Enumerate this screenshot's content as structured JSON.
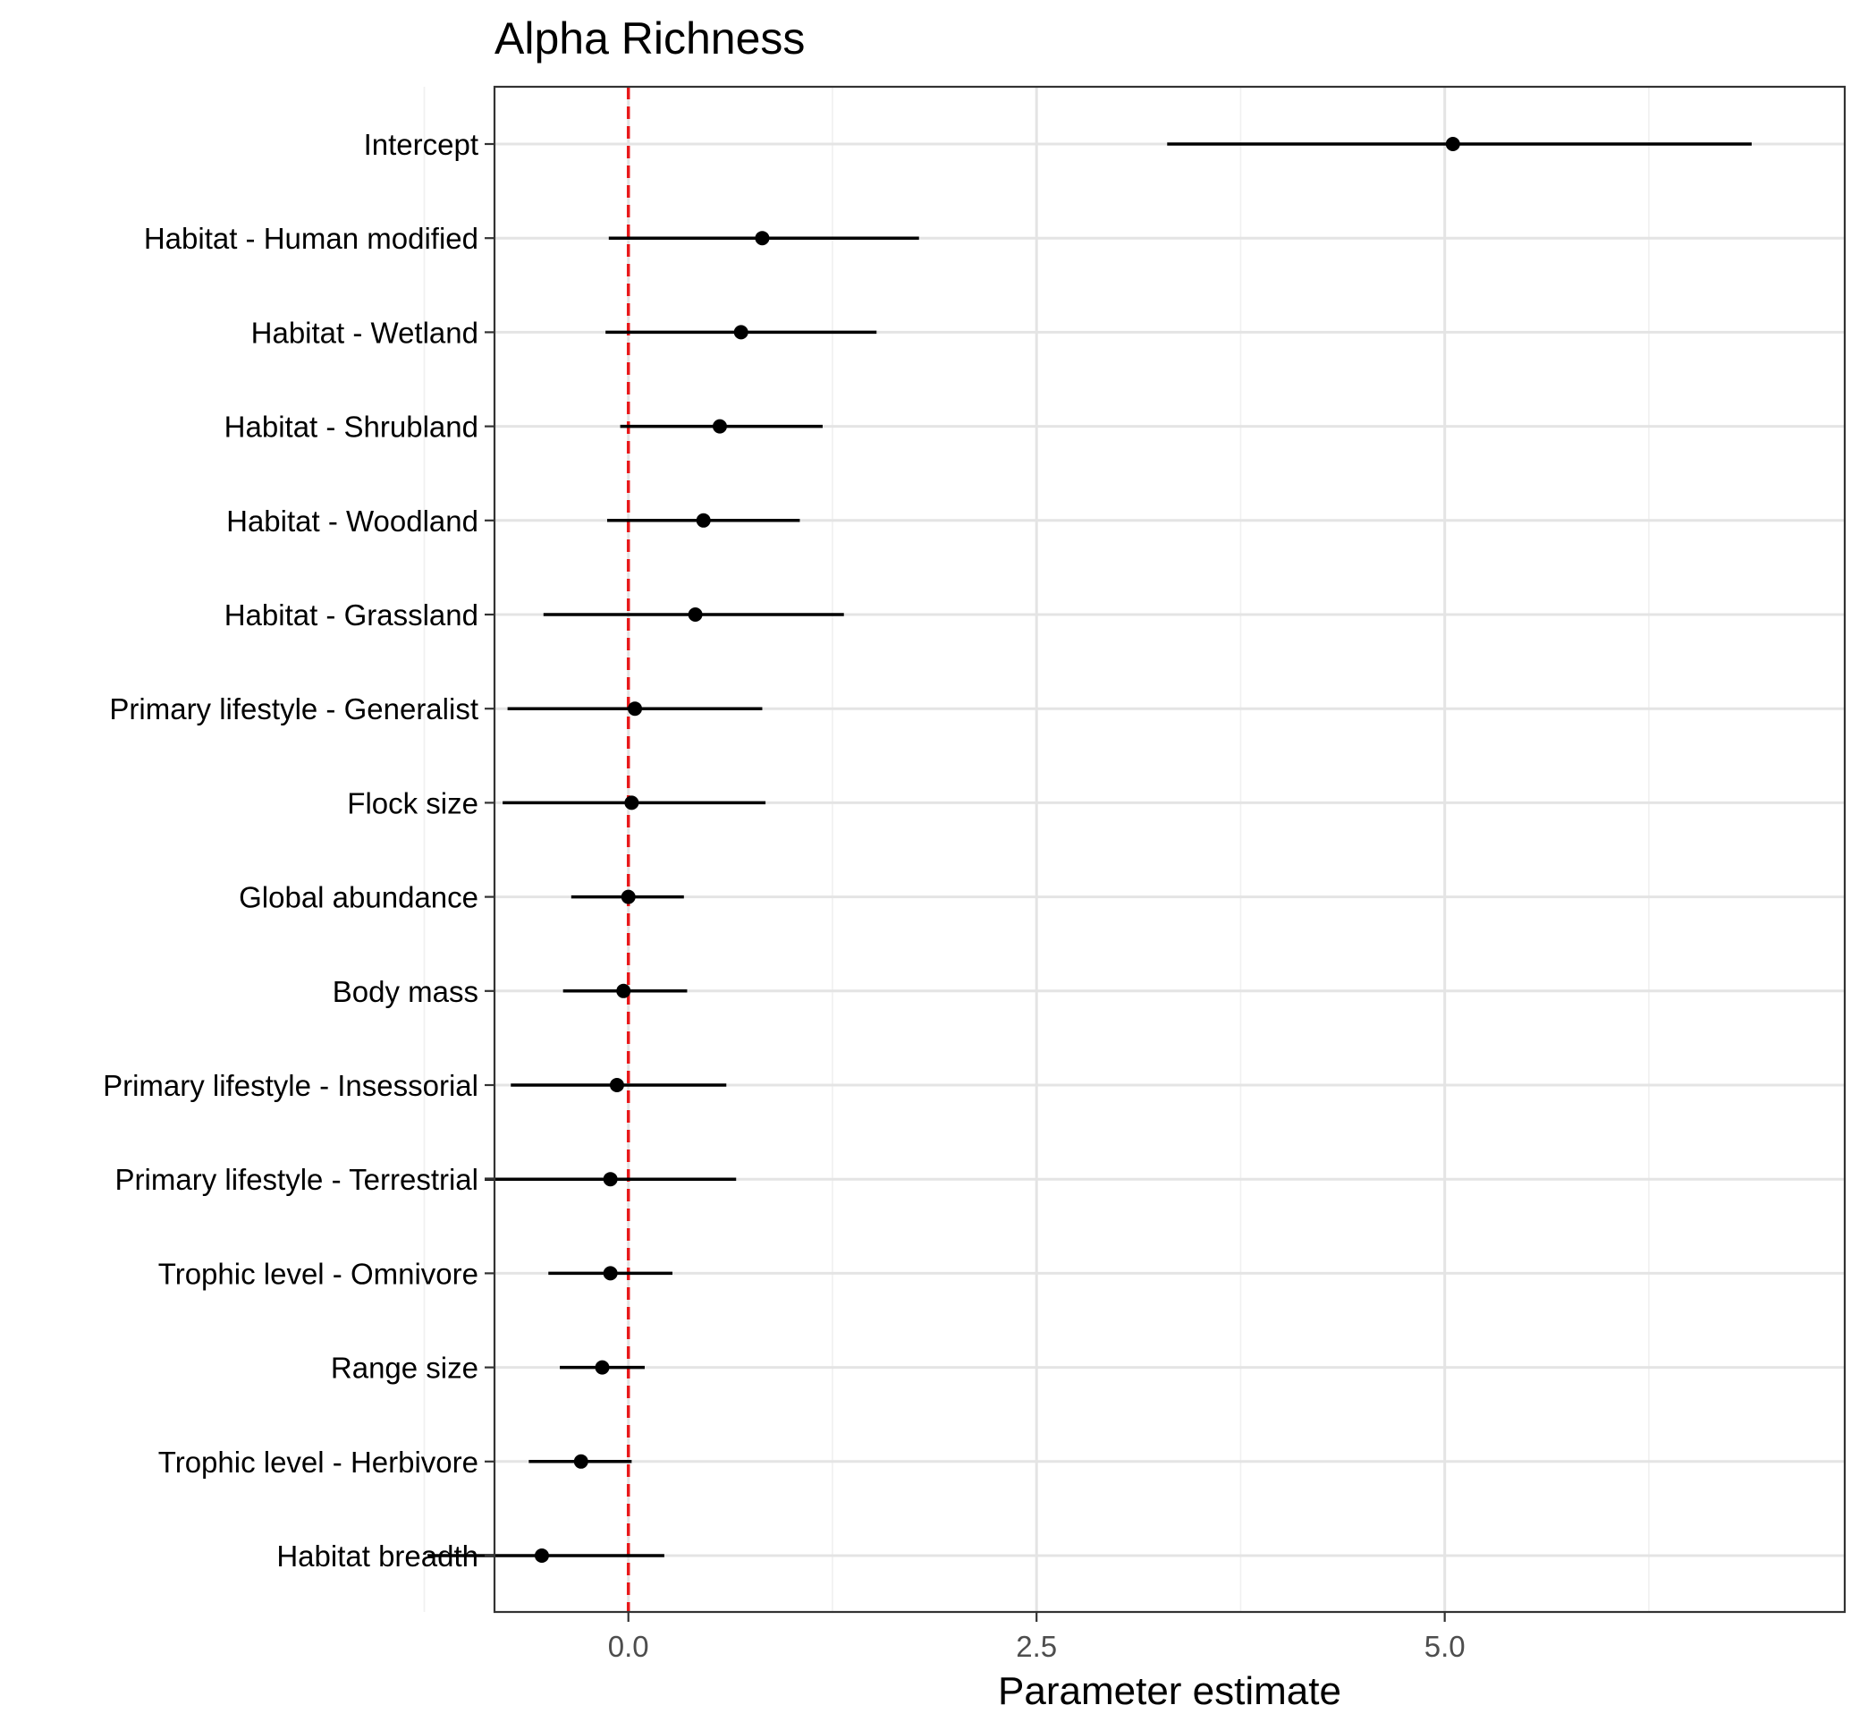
{
  "chart_data": {
    "type": "forest",
    "title": "Alpha Richness",
    "xlabel": "Parameter estimate",
    "ylabel": "",
    "xlim": [
      -0.82,
      7.45
    ],
    "x_ticks": [
      {
        "value": 0.0,
        "label": "0.0"
      },
      {
        "value": 2.5,
        "label": "2.5"
      },
      {
        "value": 5.0,
        "label": "5.0"
      }
    ],
    "x_minor_grid": [
      -1.25,
      1.25,
      3.75,
      6.25
    ],
    "reference_line": {
      "value": 0,
      "color": "#e8191b",
      "style": "dashed"
    },
    "grid": true,
    "point_color": "#000000",
    "terms": [
      {
        "label": "Intercept",
        "estimate": 5.05,
        "lower": 3.3,
        "upper": 6.88
      },
      {
        "label": "Habitat - Human modified",
        "estimate": 0.82,
        "lower": -0.12,
        "upper": 1.78
      },
      {
        "label": "Habitat - Wetland",
        "estimate": 0.69,
        "lower": -0.14,
        "upper": 1.52
      },
      {
        "label": "Habitat - Shrubland",
        "estimate": 0.56,
        "lower": -0.05,
        "upper": 1.19
      },
      {
        "label": "Habitat - Woodland",
        "estimate": 0.46,
        "lower": -0.13,
        "upper": 1.05
      },
      {
        "label": "Habitat - Grassland",
        "estimate": 0.41,
        "lower": -0.52,
        "upper": 1.32
      },
      {
        "label": "Primary lifestyle - Generalist",
        "estimate": 0.04,
        "lower": -0.74,
        "upper": 0.82
      },
      {
        "label": "Flock size",
        "estimate": 0.02,
        "lower": -0.77,
        "upper": 0.84
      },
      {
        "label": "Global abundance",
        "estimate": 0.0,
        "lower": -0.35,
        "upper": 0.34
      },
      {
        "label": "Body mass",
        "estimate": -0.03,
        "lower": -0.4,
        "upper": 0.36
      },
      {
        "label": "Primary lifestyle - Insessorial",
        "estimate": -0.07,
        "lower": -0.72,
        "upper": 0.6
      },
      {
        "label": "Primary lifestyle - Terrestrial",
        "estimate": -0.11,
        "lower": -0.88,
        "upper": 0.66
      },
      {
        "label": "Trophic level - Omnivore",
        "estimate": -0.11,
        "lower": -0.49,
        "upper": 0.27
      },
      {
        "label": "Range size",
        "estimate": -0.16,
        "lower": -0.42,
        "upper": 0.1
      },
      {
        "label": "Trophic level - Herbivore",
        "estimate": -0.29,
        "lower": -0.61,
        "upper": 0.02
      },
      {
        "label": "Habitat breadth",
        "estimate": -0.53,
        "lower": -1.23,
        "upper": 0.22
      }
    ]
  }
}
